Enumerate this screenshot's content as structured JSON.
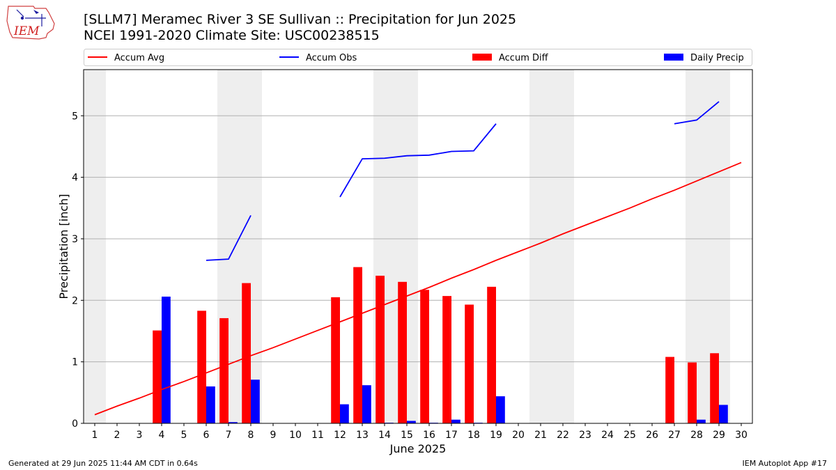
{
  "title": "[SLLM7] Meramec River 3 SE Sullivan :: Precipitation for Jun 2025",
  "subtitle": "NCEI 1991-2020 Climate Site: USC00238515",
  "logo_text": "IEM",
  "footer_left": "Generated at 29 Jun 2025 11:44 AM CDT in 0.64s",
  "footer_right": "IEM Autoplot App #17",
  "colors": {
    "accum_avg": "#ff0000",
    "accum_obs": "#0000ff",
    "accum_diff": "#ff0000",
    "daily_precip": "#0000ff",
    "weekend_shade": "#eeeeee",
    "grid": "#b0b0b0"
  },
  "chart_data": {
    "type": "bar",
    "xlabel": "June 2025",
    "ylabel": "Precipitation [inch]",
    "x": [
      1,
      2,
      3,
      4,
      5,
      6,
      7,
      8,
      9,
      10,
      11,
      12,
      13,
      14,
      15,
      16,
      17,
      18,
      19,
      20,
      21,
      22,
      23,
      24,
      25,
      26,
      27,
      28,
      29,
      30
    ],
    "xlim": [
      0.5,
      30.5
    ],
    "ylim": [
      0,
      5.75
    ],
    "yticks": [
      0,
      1,
      2,
      3,
      4,
      5
    ],
    "grid": "horizontal",
    "legend_position": "top",
    "weekend_days": [
      1,
      7,
      8,
      14,
      15,
      21,
      22,
      28,
      29
    ],
    "series": [
      {
        "name": "Accum Avg",
        "kind": "line",
        "values": [
          0.14,
          0.28,
          0.41,
          0.55,
          0.68,
          0.82,
          0.96,
          1.1,
          1.23,
          1.37,
          1.51,
          1.65,
          1.79,
          1.93,
          2.07,
          2.21,
          2.36,
          2.5,
          2.65,
          2.79,
          2.93,
          3.08,
          3.22,
          3.36,
          3.5,
          3.65,
          3.79,
          3.94,
          4.09,
          4.24
        ]
      },
      {
        "name": "Accum Obs",
        "kind": "line",
        "values": [
          null,
          null,
          null,
          null,
          null,
          2.65,
          2.67,
          3.38,
          null,
          null,
          null,
          3.68,
          4.3,
          4.31,
          4.35,
          4.36,
          4.42,
          4.43,
          4.87,
          null,
          null,
          null,
          null,
          null,
          null,
          null,
          4.87,
          4.93,
          5.23,
          null
        ]
      },
      {
        "name": "Accum Diff",
        "kind": "bar",
        "values": [
          0,
          0,
          0,
          1.51,
          0,
          1.83,
          1.71,
          2.28,
          0,
          0,
          0,
          2.05,
          2.54,
          2.4,
          2.3,
          2.17,
          2.07,
          1.93,
          2.22,
          0,
          0,
          0,
          0,
          0,
          0,
          0,
          1.08,
          0.99,
          1.14,
          0
        ]
      },
      {
        "name": "Daily Precip",
        "kind": "bar",
        "values": [
          0,
          0,
          0,
          2.06,
          0,
          0.6,
          0.02,
          0.71,
          0,
          0,
          0,
          0.31,
          0.62,
          0.01,
          0.04,
          0.01,
          0.06,
          0.01,
          0.44,
          0,
          0,
          0,
          0,
          0,
          0,
          0,
          0,
          0.06,
          0.3,
          0
        ]
      }
    ]
  }
}
